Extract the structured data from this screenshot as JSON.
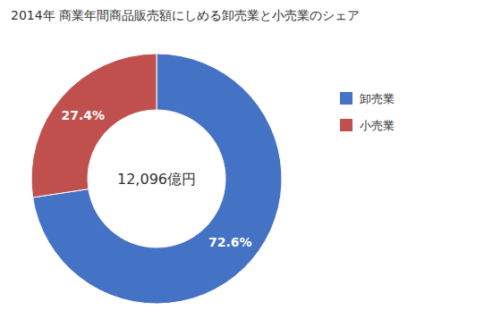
{
  "chart_data": {
    "type": "donut",
    "title": "2014年 商業年間商品販売額にしめる卸売業と小売業のシェア",
    "categories": [
      "卸売業",
      "小売業"
    ],
    "values": [
      72.6,
      27.4
    ],
    "value_labels": [
      "72.6%",
      "27.4%"
    ],
    "colors": [
      "#4472C4",
      "#C0504D"
    ],
    "annotations": [
      "12,096億円"
    ],
    "data_labels": true,
    "legend": "right"
  }
}
